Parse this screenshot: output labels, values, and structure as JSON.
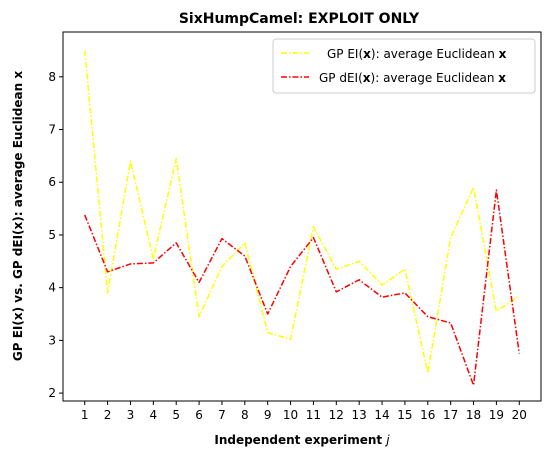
{
  "chart_data": {
    "type": "line",
    "title": "SixHumpCamel: EXPLOIT ONLY",
    "xlabel_main": "Independent experiment ",
    "xlabel_var": "j",
    "ylabel": "GP EI(x) vs. GP dEI(x): average Euclidean x",
    "x": [
      1,
      2,
      3,
      4,
      5,
      6,
      7,
      8,
      9,
      10,
      11,
      12,
      13,
      14,
      15,
      16,
      17,
      18,
      19,
      20
    ],
    "xlim": [
      0.05,
      20.95
    ],
    "ylim": [
      1.85,
      8.85
    ],
    "yticks": [
      2,
      3,
      4,
      5,
      6,
      7,
      8
    ],
    "grid": false,
    "legend_position": "top-right",
    "series": [
      {
        "name": "GP EI(x): average Euclidean x",
        "legend_pre": "GP EI(",
        "legend_bold1": "x",
        "legend_mid": "): average Euclidean ",
        "legend_bold2": "x",
        "color": "#ffff00",
        "values": [
          8.5,
          3.9,
          6.4,
          4.55,
          6.45,
          3.45,
          4.4,
          4.85,
          3.15,
          3.02,
          5.15,
          4.35,
          4.5,
          4.05,
          4.35,
          2.38,
          4.95,
          5.9,
          3.55,
          3.85
        ]
      },
      {
        "name": "GP dEI(x): average Euclidean x",
        "legend_pre": "GP dEI(",
        "legend_bold1": "x",
        "legend_mid": "): average Euclidean ",
        "legend_bold2": "x",
        "color": "#ff0000",
        "values": [
          5.38,
          4.3,
          4.45,
          4.47,
          4.85,
          4.1,
          4.93,
          4.6,
          3.5,
          4.4,
          4.95,
          3.92,
          4.15,
          3.82,
          3.9,
          3.45,
          3.33,
          2.15,
          5.85,
          2.75
        ]
      }
    ]
  }
}
